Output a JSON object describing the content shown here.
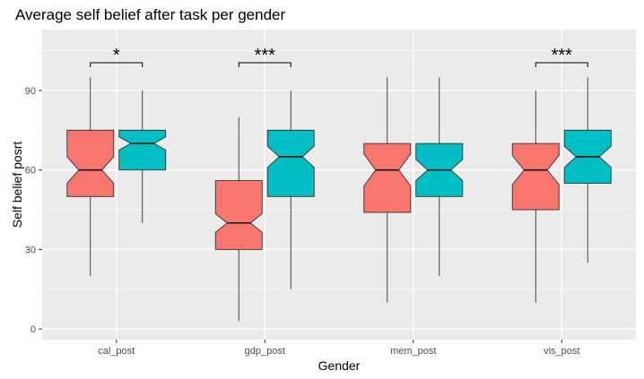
{
  "chart_data": {
    "type": "boxplot",
    "title": "Average self belief after task per gender",
    "xlabel": "Gender",
    "ylabel": "Self belief posrt",
    "ylim": [
      -4,
      113
    ],
    "yticks": [
      0,
      30,
      60,
      90
    ],
    "ytick_labels": [
      "0",
      "30",
      "60",
      "90"
    ],
    "categories": [
      "cal_post",
      "gdp_post",
      "mem_post",
      "vis_post"
    ],
    "notched": true,
    "grid": true,
    "legend": "none",
    "series": [
      {
        "color": "#F8766D",
        "boxes": [
          {
            "min": 20,
            "q1": 50,
            "median": 60,
            "q3": 75,
            "max": 95,
            "notch_low": 55,
            "notch_high": 65
          },
          {
            "min": 3,
            "q1": 30,
            "median": 40,
            "q3": 56,
            "max": 80,
            "notch_low": 36.5,
            "notch_high": 43.5
          },
          {
            "min": 10,
            "q1": 44,
            "median": 60,
            "q3": 70,
            "max": 95,
            "notch_low": 54,
            "notch_high": 66
          },
          {
            "min": 10,
            "q1": 45,
            "median": 60,
            "q3": 70,
            "max": 90,
            "notch_low": 54.5,
            "notch_high": 65.5
          }
        ]
      },
      {
        "color": "#00BFC4",
        "boxes": [
          {
            "min": 40,
            "q1": 60,
            "median": 70,
            "q3": 75,
            "max": 90,
            "notch_low": 67.5,
            "notch_high": 72.5
          },
          {
            "min": 15,
            "q1": 50,
            "median": 65,
            "q3": 75,
            "max": 90,
            "notch_low": 61,
            "notch_high": 69
          },
          {
            "min": 20,
            "q1": 50,
            "median": 60,
            "q3": 70,
            "max": 95,
            "notch_low": 56,
            "notch_high": 64
          },
          {
            "min": 25,
            "q1": 55,
            "median": 65,
            "q3": 75,
            "max": 95,
            "notch_low": 61,
            "notch_high": 69
          }
        ]
      }
    ],
    "annotations": [
      {
        "category": "cal_post",
        "label": "*",
        "y": 100.5
      },
      {
        "category": "gdp_post",
        "label": "***",
        "y": 100.5
      },
      {
        "category": "vis_post",
        "label": "***",
        "y": 100.5
      }
    ]
  }
}
